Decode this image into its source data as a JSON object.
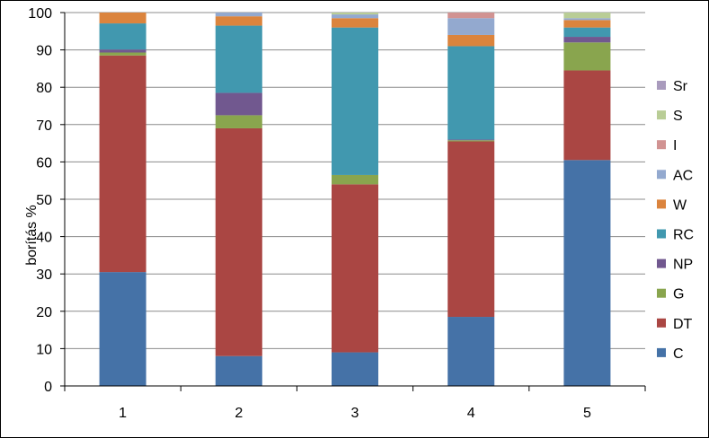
{
  "chart_data": {
    "type": "bar",
    "stacked": true,
    "title": "",
    "xlabel": "",
    "ylabel": "borítás %",
    "ylim": [
      0,
      100
    ],
    "yticks": [
      0,
      10,
      20,
      30,
      40,
      50,
      60,
      70,
      80,
      90,
      100
    ],
    "categories": [
      "1",
      "2",
      "3",
      "4",
      "5"
    ],
    "grid": true,
    "legend_position": "right",
    "series": [
      {
        "name": "C",
        "color": "#4572A7",
        "values": [
          30.5,
          8.0,
          9.0,
          18.5,
          60.5
        ]
      },
      {
        "name": "DT",
        "color": "#AA4643",
        "values": [
          58.0,
          61.0,
          45.0,
          47.0,
          24.0
        ]
      },
      {
        "name": "G",
        "color": "#89A54E",
        "values": [
          0.8,
          3.5,
          2.5,
          0.3,
          7.5
        ]
      },
      {
        "name": "NP",
        "color": "#71588F",
        "values": [
          0.8,
          6.0,
          0.0,
          0.2,
          1.5
        ]
      },
      {
        "name": "RC",
        "color": "#4198AF",
        "values": [
          7.0,
          18.0,
          39.5,
          25.0,
          2.5
        ]
      },
      {
        "name": "W",
        "color": "#DB843D",
        "values": [
          2.9,
          2.5,
          2.5,
          3.0,
          2.0
        ]
      },
      {
        "name": "AC",
        "color": "#93A9CF",
        "values": [
          0.0,
          1.0,
          1.0,
          4.5,
          0.5
        ]
      },
      {
        "name": "I",
        "color": "#D19392",
        "values": [
          0.0,
          0.0,
          0.0,
          1.5,
          0.0
        ]
      },
      {
        "name": "S",
        "color": "#B9CD96",
        "values": [
          0.0,
          0.0,
          0.5,
          0.0,
          1.5
        ]
      },
      {
        "name": "Sr",
        "color": "#A99BBD",
        "values": [
          0.0,
          0.0,
          0.0,
          0.0,
          0.0
        ]
      }
    ]
  }
}
